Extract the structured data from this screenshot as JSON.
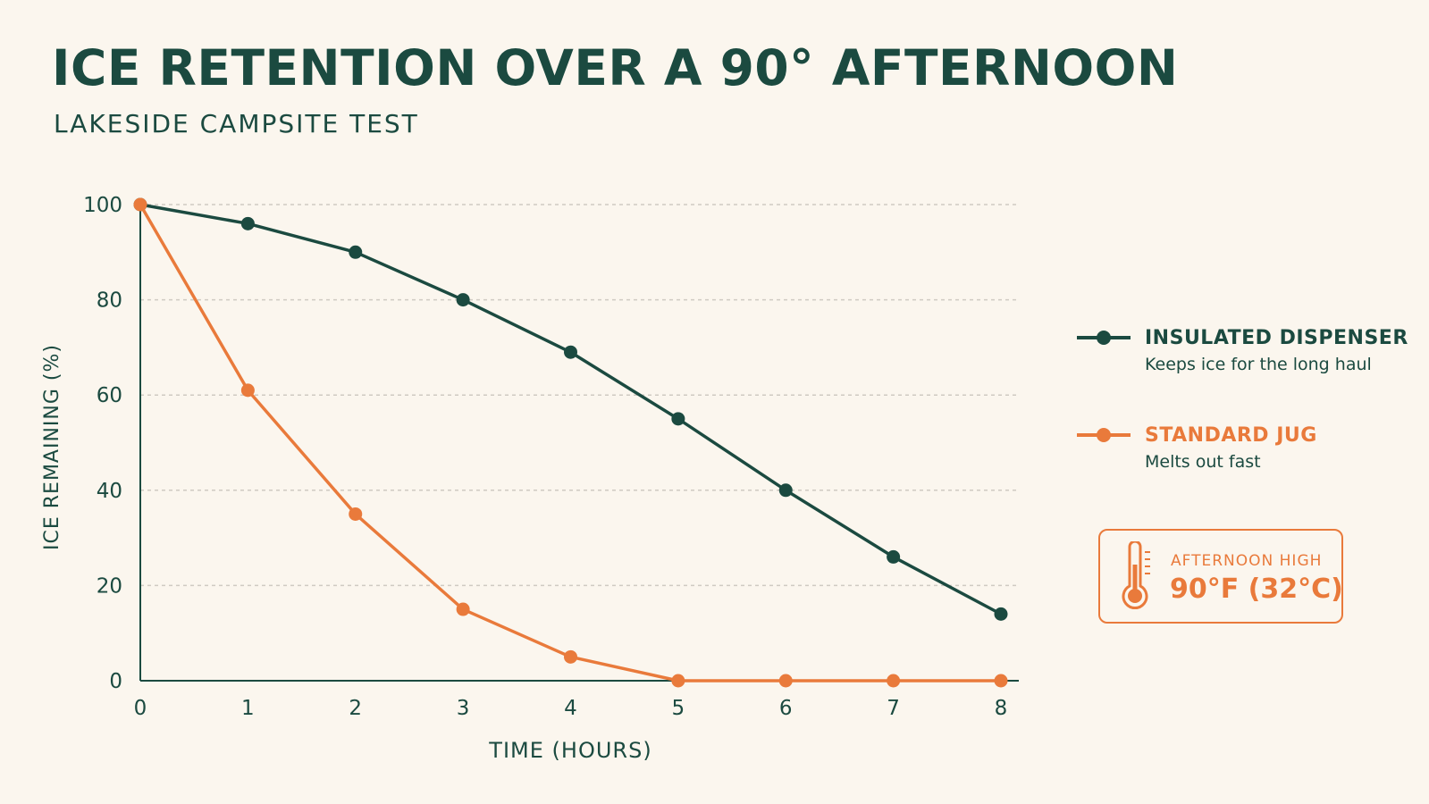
{
  "header": {
    "title": "ICE RETENTION OVER A 90° AFTERNOON",
    "subtitle": "LAKESIDE CAMPSITE TEST"
  },
  "legend": {
    "items": [
      {
        "name": "INSULATED DISPENSER",
        "description": "Keeps ice for the long haul"
      },
      {
        "name": "STANDARD JUG",
        "description": "Melts out fast"
      }
    ]
  },
  "callout": {
    "label": "AFTERNOON HIGH",
    "value": "90°F (32°C)",
    "icon": "thermometer-icon"
  },
  "colors": {
    "dark_green": "#1b4a40",
    "orange": "#e97a3b",
    "background": "#fbf6ee",
    "grid": "#cfcac2"
  },
  "chart_data": {
    "type": "line",
    "title": "ICE RETENTION OVER A 90° AFTERNOON",
    "subtitle": "LAKESIDE CAMPSITE TEST",
    "xlabel": "TIME (HOURS)",
    "ylabel": "ICE REMAINING (%)",
    "x": [
      0,
      1,
      2,
      3,
      4,
      5,
      6,
      7,
      8
    ],
    "xticks": [
      "0",
      "1",
      "2",
      "3",
      "4",
      "5",
      "6",
      "7",
      "8"
    ],
    "yticks": [
      "0",
      "20",
      "40",
      "60",
      "80",
      "100"
    ],
    "xlim": [
      0,
      8
    ],
    "ylim": [
      0,
      100
    ],
    "grid": "horizontal dashed",
    "legend_position": "right",
    "series": [
      {
        "name": "INSULATED DISPENSER",
        "color": "#1b4a40",
        "values": [
          100,
          96,
          90,
          80,
          69,
          55,
          40,
          26,
          14
        ]
      },
      {
        "name": "STANDARD JUG",
        "color": "#e97a3b",
        "values": [
          100,
          61,
          35,
          15,
          5,
          0,
          0,
          0,
          0
        ]
      }
    ]
  }
}
